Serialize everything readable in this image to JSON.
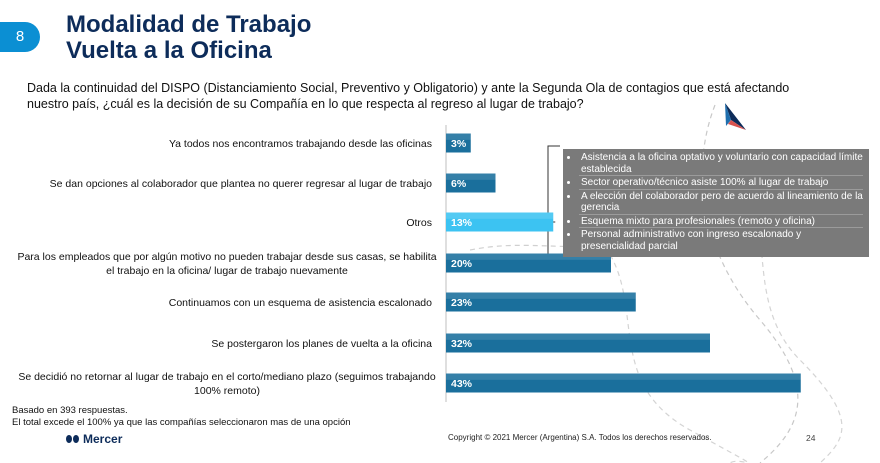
{
  "slide": {
    "number": "8",
    "title_line1": "Modalidad de Trabajo",
    "title_line2": "Vuelta a la Oficina",
    "question": "Dada la continuidad del DISPO (Distanciamiento Social, Preventivo y Obligatorio) y ante la Segunda Ola de contagios que está afectando nuestro país, ¿cuál es la decisión de su Compañía en lo que respecta al regreso al lugar de trabajo?"
  },
  "chart_data": {
    "type": "bar",
    "orientation": "horizontal",
    "categories": [
      "Ya todos nos encontramos trabajando desde las oficinas",
      "Se dan opciones al colaborador que plantea no querer regresar al lugar de trabajo",
      "Otros",
      "Para los empleados que por algún motivo no pueden trabajar desde sus casas, se habilita el trabajo en la oficina/ lugar de trabajo nuevamente",
      "Continuamos con un esquema de asistencia escalonado",
      "Se postergaron los planes de vuelta a la oficina",
      "Se decidió no retornar al lugar de trabajo en el corto/mediano plazo (seguimos trabajando 100% remoto)"
    ],
    "values": [
      3,
      6,
      13,
      20,
      23,
      32,
      43
    ],
    "labels": [
      "3%",
      "6%",
      "13%",
      "20%",
      "23%",
      "32%",
      "43%"
    ],
    "unit": "%",
    "highlight_category": "Otros",
    "colors": {
      "bar": "#1a6f9c",
      "bar_highlight": "#3cc3f2",
      "axis": "#bfbfbf"
    }
  },
  "callout": {
    "items": [
      "Asistencia a la oficina optativo y voluntario con capacidad límite establecida",
      "Sector operativo/técnico asiste 100% al lugar de trabajo",
      "A elección del colaborador pero de acuerdo al lineamiento de la gerencia",
      "Esquema mixto para profesionales (remoto y oficina)",
      "Personal administrativo con ingreso escalonado y presencialidad parcial"
    ]
  },
  "footer": {
    "note1": "Basado en 393 respuestas.",
    "note2": "El total excede el 100% ya que las compañías seleccionaron mas de una opción",
    "brand": "Mercer",
    "copyright": "Copyright © 2021 Mercer (Argentina) S.A. Todos los derechos reservados.",
    "page": "24"
  }
}
